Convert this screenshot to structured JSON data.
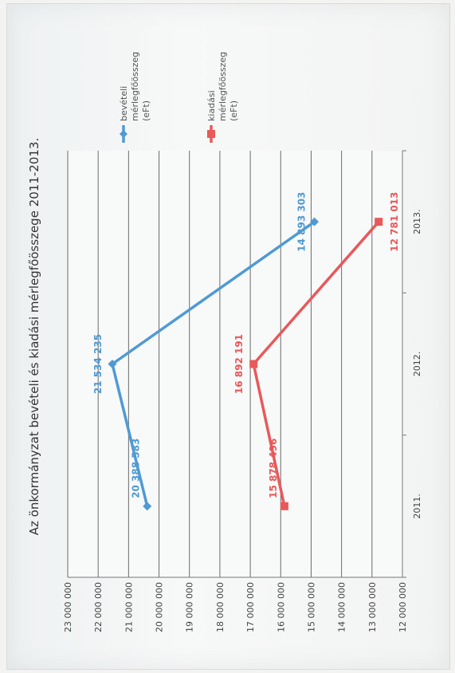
{
  "chart_data": {
    "type": "line",
    "title": "Az önkormányzat bevételi és kiadási mérlegfőösszege 2011-2013.",
    "categories": [
      "2011.",
      "2012.",
      "2013."
    ],
    "ylim": [
      12000000,
      23000000
    ],
    "yticks": [
      "12 000 000",
      "13 000 000",
      "14 000 000",
      "15 000 000",
      "16 000 000",
      "17 000 000",
      "18 000 000",
      "19 000 000",
      "20 000 000",
      "21 000 000",
      "22 000 000",
      "23 000 000"
    ],
    "ytick_values": [
      12000000,
      13000000,
      14000000,
      15000000,
      16000000,
      17000000,
      18000000,
      19000000,
      20000000,
      21000000,
      22000000,
      23000000
    ],
    "grid": true,
    "legend_position": "right",
    "orientation": "rotated 90° counter-clockwise",
    "series": [
      {
        "name_lines": [
          "bevételi",
          "mérlegfőösszeg",
          "(eFt)"
        ],
        "color": "#4f9ad3",
        "marker": "diamond",
        "values": [
          20388583,
          21534235,
          14893303
        ],
        "labels": [
          "20 388 583",
          "21 534 235",
          "14 893 303"
        ]
      },
      {
        "name_lines": [
          "kiadási",
          "mérlegfőösszeg",
          "(eFt)"
        ],
        "color": "#e8595a",
        "marker": "square",
        "values": [
          15878496,
          16892191,
          12781013
        ],
        "labels": [
          "15 878 496",
          "16 892 191",
          "12 781 013"
        ]
      }
    ]
  }
}
